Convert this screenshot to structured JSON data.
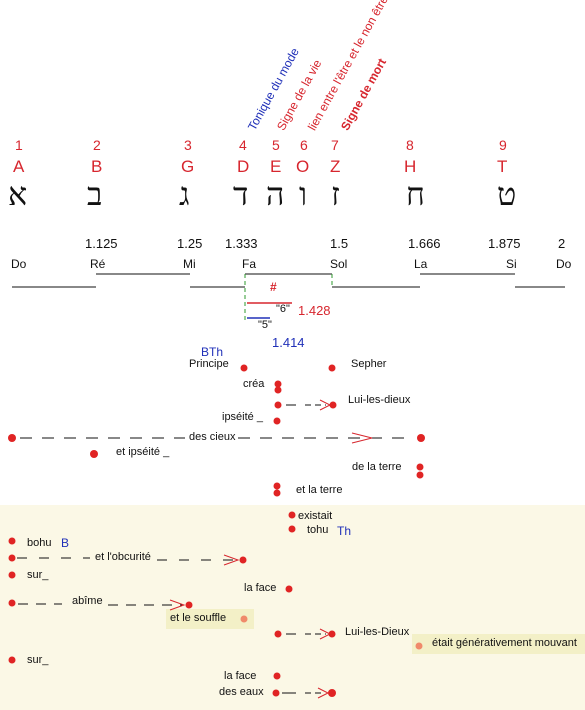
{
  "colors": {
    "red": "#d7262e",
    "blue": "#2030b8",
    "panel": "#fbf8e6",
    "highlight": "#f3f0c7",
    "dot": "#e02424",
    "dot_light": "#f08a6a"
  },
  "rotated_labels": {
    "tonique": "Tonique du mode",
    "signe_vie": "Signe de la vie",
    "lien": "lien entre l'être et le non être",
    "signe_mort": "Signe de mort"
  },
  "letters": [
    {
      "num": "1",
      "latin": "A",
      "heb": "א"
    },
    {
      "num": "2",
      "latin": "B",
      "heb": "ב"
    },
    {
      "num": "3",
      "latin": "G",
      "heb": "ג"
    },
    {
      "num": "4",
      "latin": "D",
      "heb": "ד"
    },
    {
      "num": "5",
      "latin": "E",
      "heb": "ה"
    },
    {
      "num": "6",
      "latin": "O",
      "heb": "ו"
    },
    {
      "num": "7",
      "latin": "Z",
      "heb": "ז"
    },
    {
      "num": "8",
      "latin": "H",
      "heb": "ח"
    },
    {
      "num": "9",
      "latin": "T",
      "heb": "ט"
    }
  ],
  "ratios": [
    "1.125",
    "1.25",
    "1.333",
    "1.5",
    "1.666",
    "1.875",
    "2"
  ],
  "notes": [
    "Do",
    "Ré",
    "Mi",
    "Fa",
    "Sol",
    "La",
    "Si",
    "Do"
  ],
  "tritone": {
    "sharp": "#",
    "six": "\"6\"",
    "six_value": "1.428",
    "five": "\"5\"",
    "five_value": "1.414"
  },
  "words": {
    "bth": "BTh",
    "principe": "Principe",
    "sepher": "Sepher",
    "crea": "créa",
    "lui_les_dieux": "Lui-les-dieux",
    "ipseite": "ipséité _",
    "des_cieux": "des cieux",
    "et_ipseite": "et ipséité _",
    "de_la_terre": "de la terre",
    "et_la_terre": "et la terre",
    "existait": "existait",
    "tohu": "tohu",
    "th": "Th",
    "bohu": "bohu",
    "b": "B",
    "obscurite": "et l'obcurité",
    "sur1": "sur_",
    "la_face1": "la face",
    "abime": "abîme",
    "et_le_souffle": "et le souffle",
    "lui_les_dieux2": "Lui-les-Dieux",
    "etait": "était générativement mouvant",
    "sur2": "sur_",
    "la_face2": "la face",
    "des_eaux": "des eaux"
  }
}
